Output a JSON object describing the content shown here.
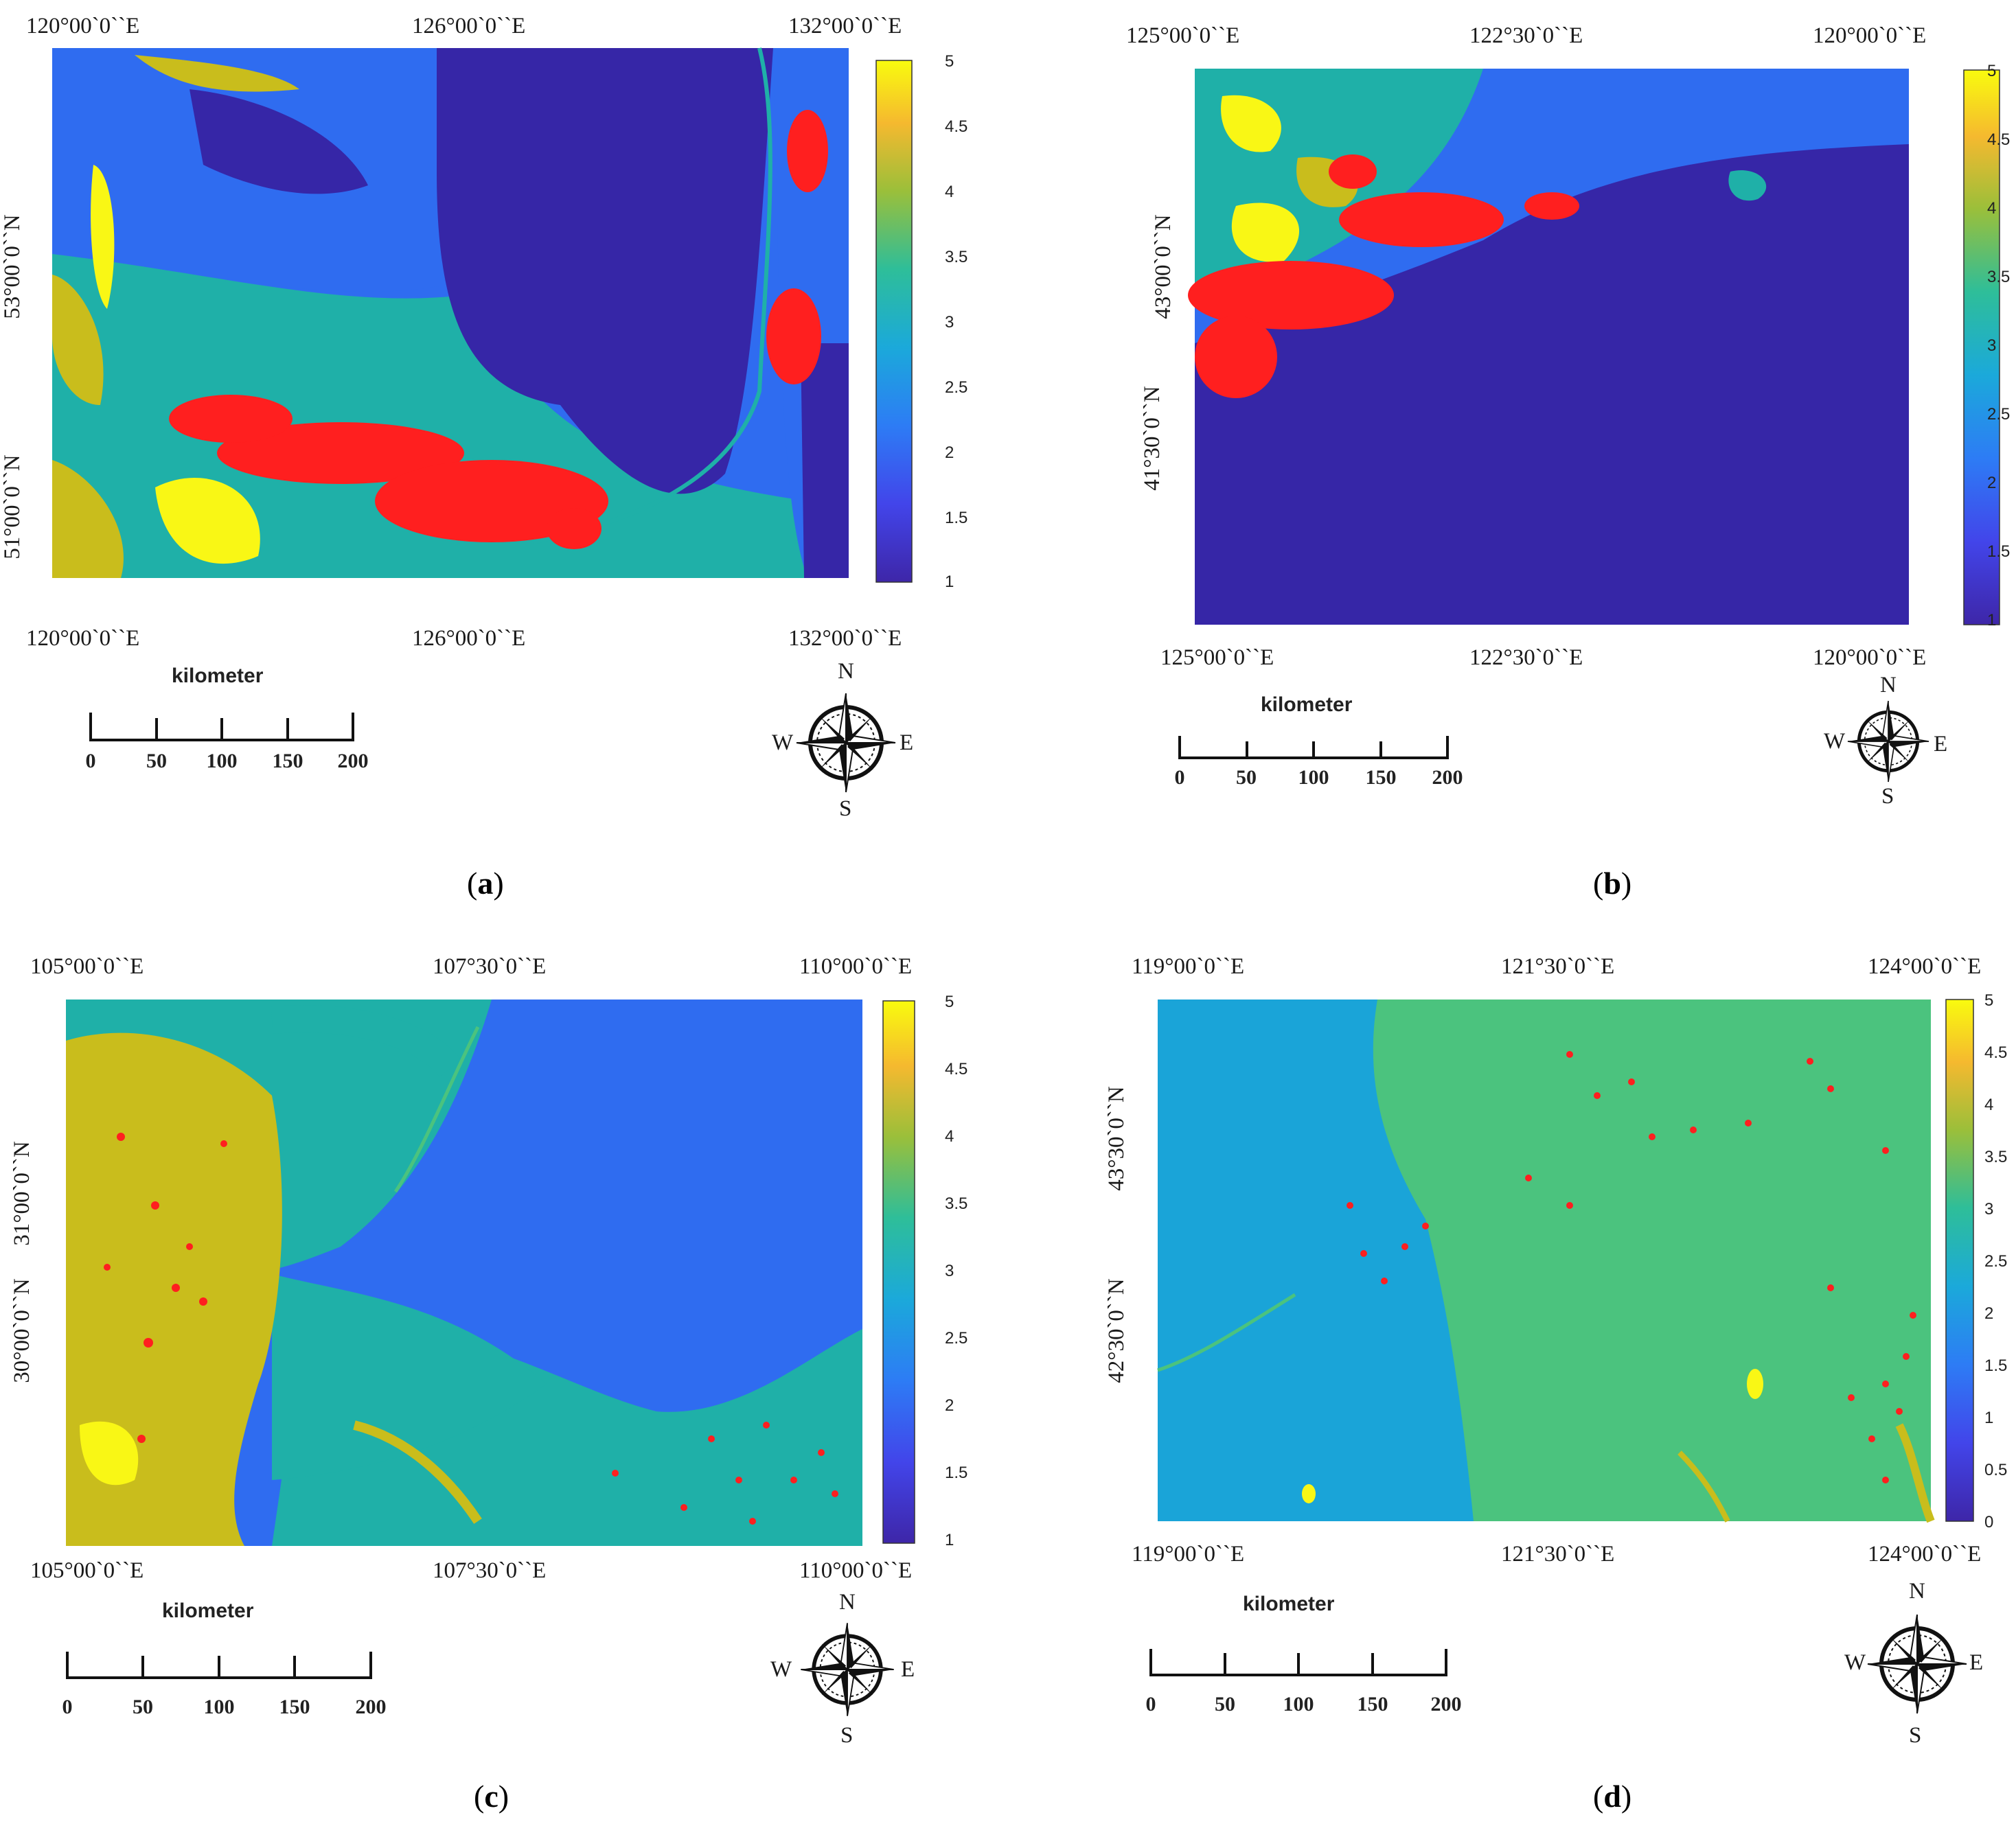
{
  "unit_label": "kilometer",
  "scale_ticks": [
    "0",
    "50",
    "100",
    "150",
    "200"
  ],
  "compass": {
    "n": "N",
    "s": "S",
    "e": "E",
    "w": "W"
  },
  "colors": {
    "low": "#3626a7",
    "blue": "#2f6cf0",
    "cyan": "#1aa4d8",
    "teal": "#1fb0a8",
    "green": "#4bc37e",
    "olive": "#c9bd1c",
    "yellow": "#f9f715",
    "red": "#ff1f1f"
  },
  "panels": {
    "a": {
      "caption_letter": "a",
      "lon_top": [
        "120°00`0``E",
        "126°00`0``E",
        "132°00`0``E"
      ],
      "lon_bottom": [
        "120°00`0``E",
        "126°00`0``E",
        "132°00`0``E"
      ],
      "lat_left": [
        "53°00`0``N",
        "51°00`0``N"
      ],
      "colorbar": [
        "5",
        "4.5",
        "4",
        "3.5",
        "3",
        "2.5",
        "2",
        "1.5",
        "1"
      ]
    },
    "b": {
      "caption_letter": "b",
      "lon_top": [
        "125°00`0``E",
        "122°30`0``E",
        "120°00`0``E"
      ],
      "lon_bottom": [
        "125°00`0``E",
        "122°30`0``E",
        "120°00`0``E"
      ],
      "lat_left": [
        "43°00`0``N",
        "41°30`0``N"
      ],
      "colorbar": [
        "5",
        "4.5",
        "4",
        "3.5",
        "3",
        "2.5",
        "2",
        "1.5",
        "1"
      ]
    },
    "c": {
      "caption_letter": "c",
      "lon_top": [
        "105°00`0``E",
        "107°30`0``E",
        "110°00`0``E"
      ],
      "lon_bottom": [
        "105°00`0``E",
        "107°30`0``E",
        "110°00`0``E"
      ],
      "lat_left": [
        "31°00`0``N",
        "30°00`0``N"
      ],
      "colorbar": [
        "5",
        "4.5",
        "4",
        "3.5",
        "3",
        "2.5",
        "2",
        "1.5",
        "1"
      ]
    },
    "d": {
      "caption_letter": "d",
      "lon_top": [
        "119°00`0``E",
        "121°30`0``E",
        "124°00`0``E"
      ],
      "lon_bottom": [
        "119°00`0``E",
        "121°30`0``E",
        "124°00`0``E"
      ],
      "lat_left": [
        "43°30`0``N",
        "42°30`0``N"
      ],
      "colorbar": [
        "5",
        "4.5",
        "4",
        "3.5",
        "3",
        "2.5",
        "2",
        "1.5",
        "1",
        "0.5",
        "0"
      ]
    }
  }
}
